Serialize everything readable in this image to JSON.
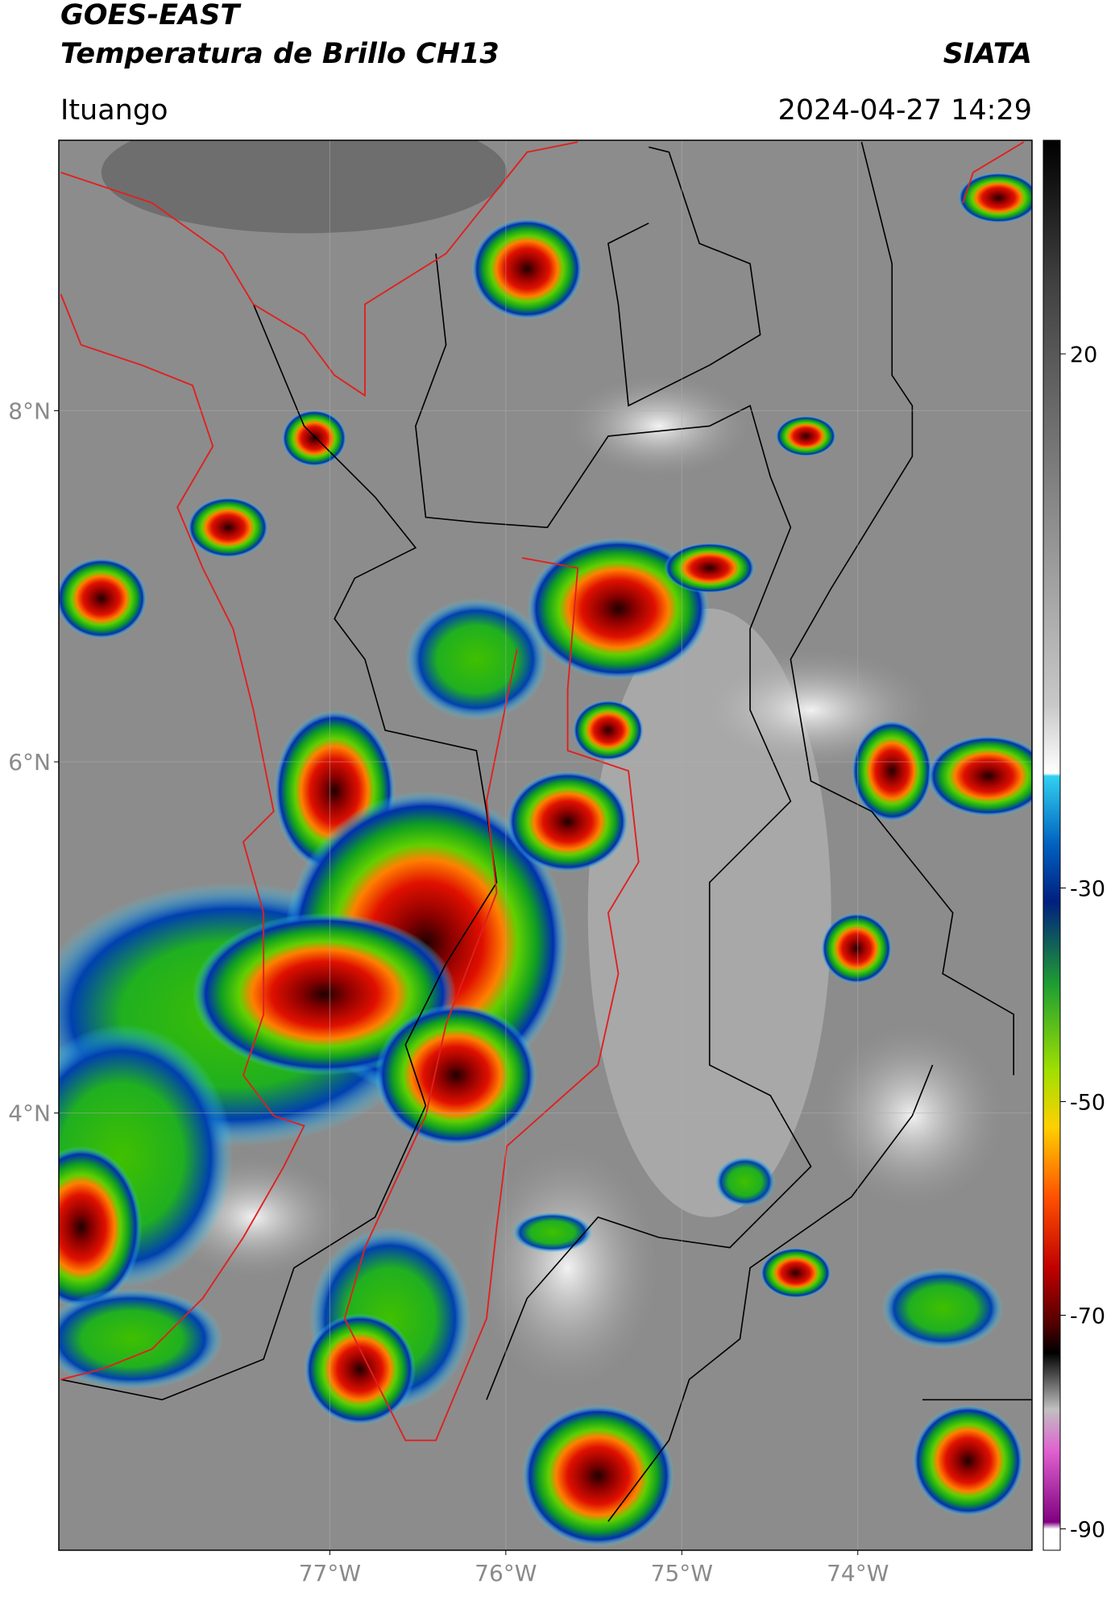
{
  "header": {
    "title": "GOES-EAST",
    "subtitle": "Temperatura de Brillo CH13",
    "source": "SIATA",
    "location": "Ituango",
    "datetime": "2024-04-27 14:29"
  },
  "map": {
    "xlim": [
      -78.54,
      -73.01
    ],
    "ylim": [
      1.51,
      9.54
    ],
    "xticks": [
      {
        "value": -77,
        "label": "77°W"
      },
      {
        "value": -76,
        "label": "76°W"
      },
      {
        "value": -75,
        "label": "75°W"
      },
      {
        "value": -74,
        "label": "74°W"
      }
    ],
    "yticks": [
      {
        "value": 8,
        "label": "8°N"
      },
      {
        "value": 6,
        "label": "6°N"
      },
      {
        "value": 4,
        "label": "4°N"
      }
    ]
  },
  "colorbar": {
    "lim": [
      -92,
      40
    ],
    "ticks": [
      20,
      -30,
      -50,
      -70,
      -90
    ]
  }
}
